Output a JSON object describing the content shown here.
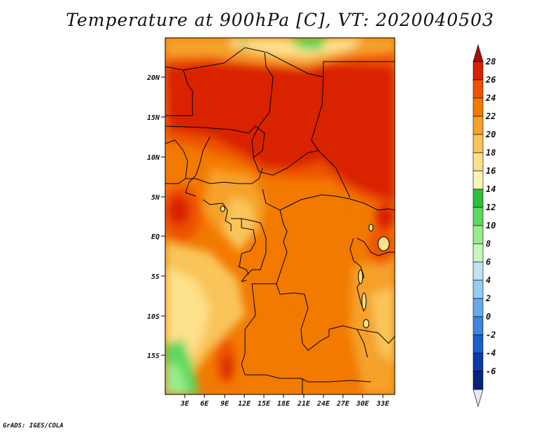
{
  "title": "Temperature at 900hPa [C], VT: 2020040503",
  "credit": "GrADS: IGES/COLA",
  "map": {
    "lat_labels": [
      "20N",
      "15N",
      "10N",
      "5N",
      "EQ",
      "5S",
      "10S",
      "15S"
    ],
    "lon_labels": [
      "3E",
      "6E",
      "9E",
      "12E",
      "15E",
      "18E",
      "21E",
      "24E",
      "27E",
      "30E",
      "33E"
    ]
  },
  "colorbar": {
    "labels": [
      "28",
      "26",
      "24",
      "22",
      "20",
      "18",
      "16",
      "14",
      "12",
      "10",
      "8",
      "6",
      "4",
      "2",
      "0",
      "-2",
      "-4",
      "-6"
    ],
    "colors": [
      "#a50f0f",
      "#d92300",
      "#ee5200",
      "#f27a00",
      "#f5a12a",
      "#f9c55a",
      "#fde08a",
      "#fff4b8",
      "#2fbf3a",
      "#5ed860",
      "#98ec8e",
      "#c5f7bd",
      "#bfe2f7",
      "#95cdf3",
      "#66a9e8",
      "#3d86de",
      "#1a5fc7",
      "#0b3aa6",
      "#062478",
      "#03124a"
    ]
  }
}
